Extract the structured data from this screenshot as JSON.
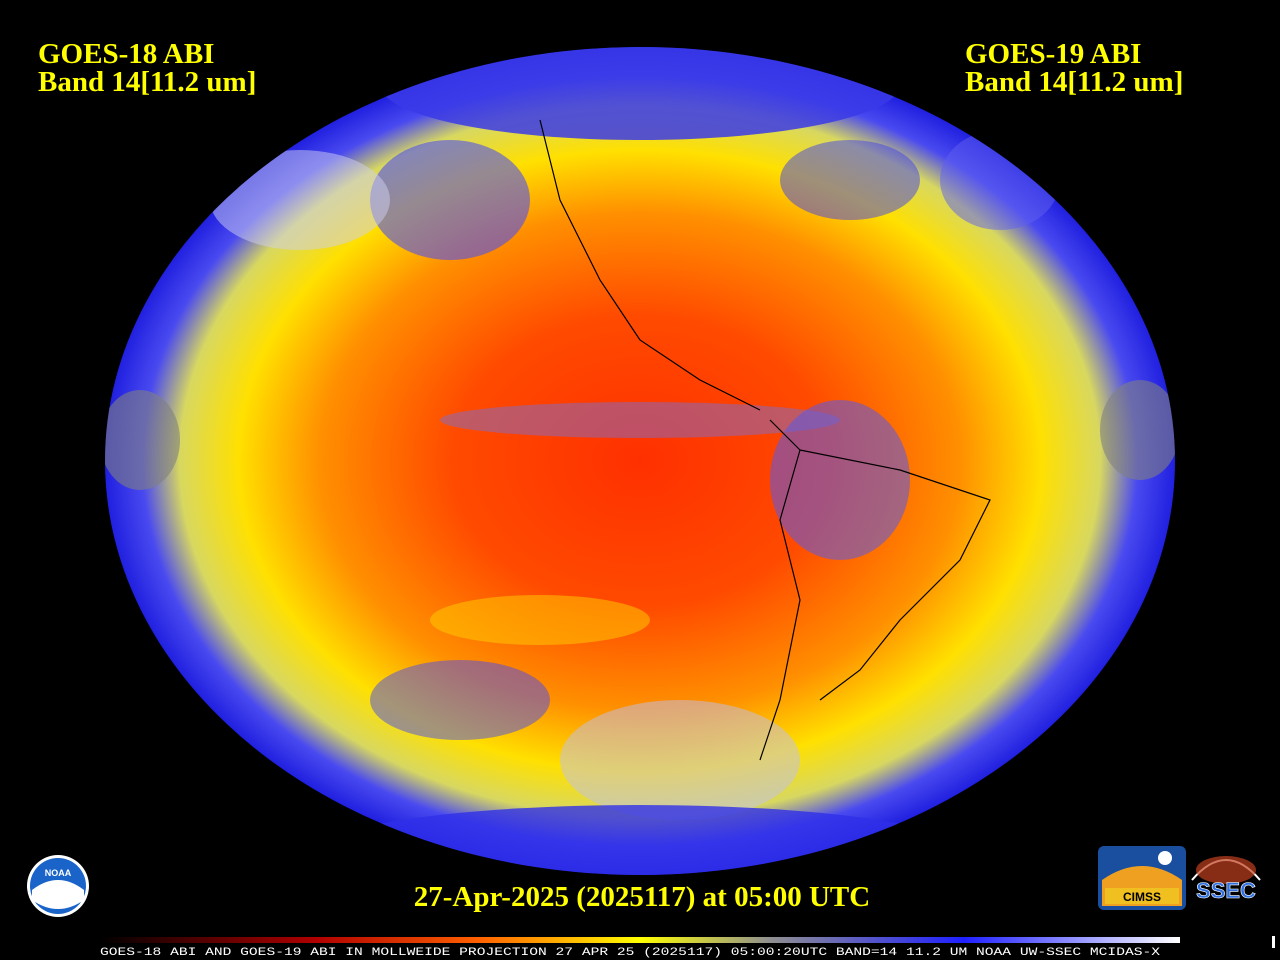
{
  "header": {
    "left": {
      "satellite": "GOES-18 ABI",
      "band": "Band 14[11.2 um]"
    },
    "right": {
      "satellite": "GOES-19 ABI",
      "band": "Band 14[11.2 um]"
    }
  },
  "timestamp": "27-Apr-2025 (2025117) at 05:00 UTC",
  "footer": "GOES-18 ABI AND GOES-19 ABI IN MOLLWEIDE PROJECTION 27 APR 25 (2025117) 05:00:20UTC BAND=14 11.2 UM NOAA UW-SSEC MCIDAS-X",
  "logos": {
    "noaa": "NOAA",
    "cimss": "CIMSS",
    "ssec": "SSEC"
  }
}
